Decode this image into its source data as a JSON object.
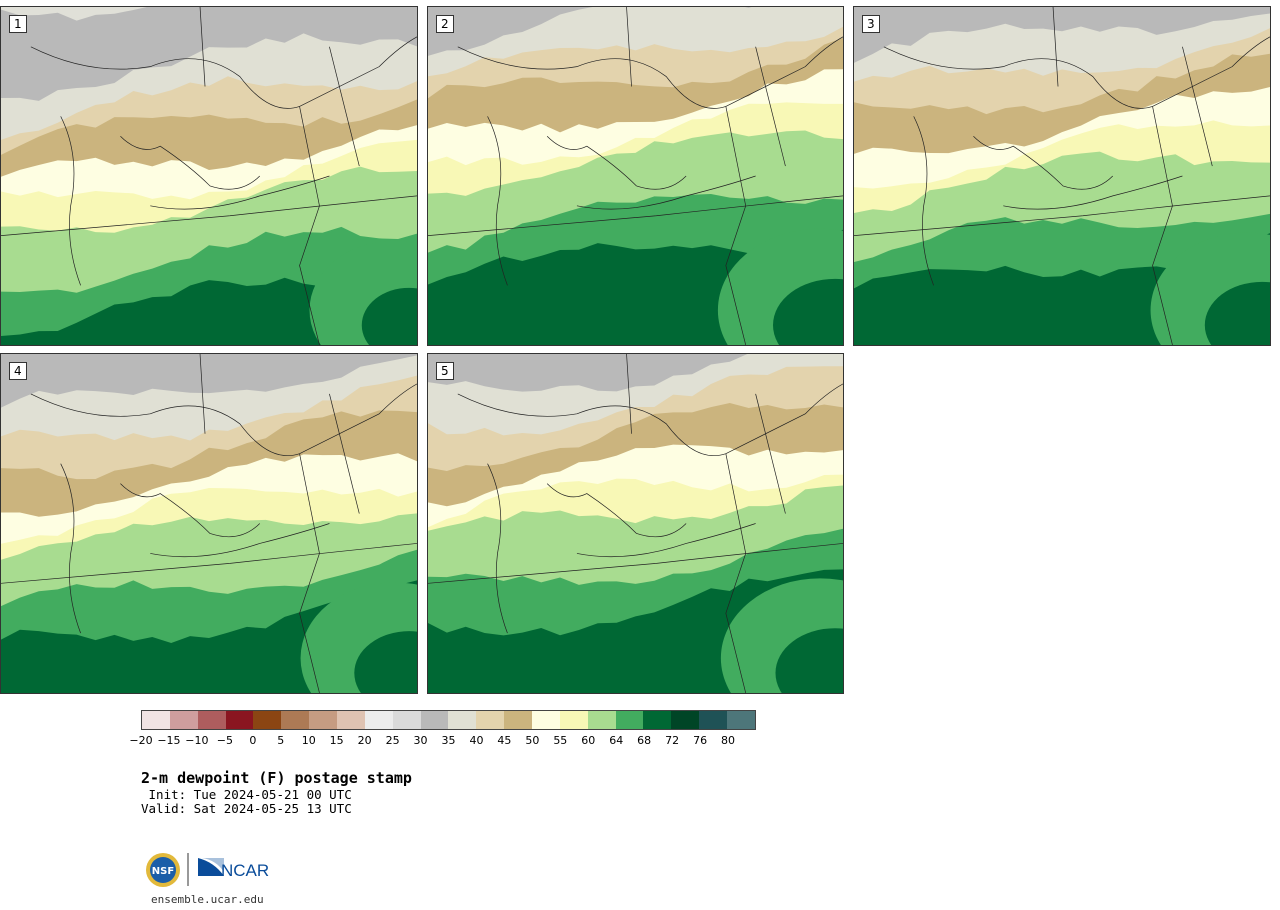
{
  "panels": [
    {
      "label": "1",
      "moisture": 0.25
    },
    {
      "label": "2",
      "moisture": 0.55
    },
    {
      "label": "3",
      "moisture": 0.45
    },
    {
      "label": "4",
      "moisture": 0.4
    },
    {
      "label": "5",
      "moisture": 0.5
    }
  ],
  "colorbar": {
    "colors": [
      "#f1e4e4",
      "#cf9e9e",
      "#ae5d5e",
      "#8a1520",
      "#8b4513",
      "#ad7a55",
      "#c69c82",
      "#dfc3b2",
      "#ececec",
      "#dadada",
      "#b9b9b9",
      "#e0e0d4",
      "#e3d3ad",
      "#cbb47e",
      "#fefee2",
      "#f8f8b6",
      "#a8dc90",
      "#42ac5f",
      "#006834",
      "#004526",
      "#1f5256",
      "#4d767a"
    ],
    "tick_labels": [
      "−20",
      "−15",
      "−10",
      "−5",
      "0",
      "5",
      "10",
      "15",
      "20",
      "25",
      "30",
      "35",
      "40",
      "45",
      "50",
      "55",
      "60",
      "64",
      "68",
      "72",
      "76",
      "80"
    ]
  },
  "title": "2-m dewpoint (F) postage stamp",
  "init": " Init: Tue 2024-05-21 00 UTC",
  "valid": "Valid: Sat 2024-05-25 13 UTC",
  "footer": {
    "site": "ensemble.ucar.edu",
    "logo_nsf": "NSF",
    "logo_ncar": "NCAR"
  }
}
